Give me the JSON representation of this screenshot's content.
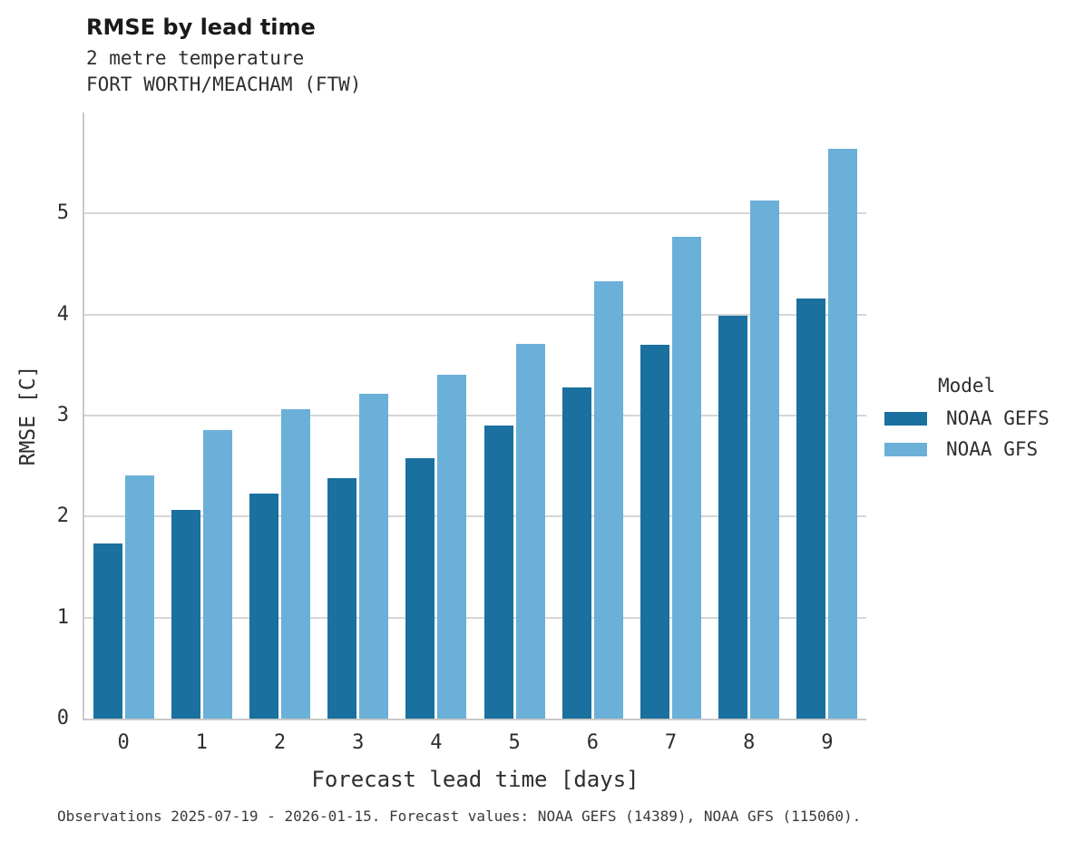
{
  "header": {
    "title": "RMSE by lead time",
    "subtitle1": "2 metre temperature",
    "subtitle2": "FORT WORTH/MEACHAM (FTW)"
  },
  "footer": {
    "caption": "Observations 2025-07-19 - 2026-01-15. Forecast values: NOAA GEFS (14389), NOAA GFS (115060)."
  },
  "legend": {
    "title": "Model"
  },
  "colors": {
    "gefs_dark_blue": "#1a709f",
    "gfs_light_blue": "#6bb0d8",
    "gridline_gray": "#d6d6d6",
    "spine_gray": "#c9c9c9"
  },
  "chart_data": {
    "type": "bar",
    "title": "RMSE by lead time",
    "subtitle": [
      "2 metre temperature",
      "FORT WORTH/MEACHAM (FTW)"
    ],
    "xlabel": "Forecast lead time [days]",
    "ylabel": "RMSE [C]",
    "categories": [
      "0",
      "1",
      "2",
      "3",
      "4",
      "5",
      "6",
      "7",
      "8",
      "9"
    ],
    "series": [
      {
        "name": "NOAA GEFS",
        "color": "#1a709f",
        "values": [
          1.73,
          2.07,
          2.23,
          2.38,
          2.58,
          2.9,
          3.28,
          3.7,
          3.99,
          4.16
        ]
      },
      {
        "name": "NOAA GFS",
        "color": "#6bb0d8",
        "values": [
          2.41,
          2.86,
          3.06,
          3.22,
          3.4,
          3.71,
          4.33,
          4.77,
          5.13,
          5.64
        ]
      }
    ],
    "ylim": [
      0,
      6
    ],
    "yticks": [
      0,
      1,
      2,
      3,
      4,
      5
    ],
    "grid": true,
    "legend_title": "Model",
    "legend_position": "right",
    "caption": "Observations 2025-07-19 - 2026-01-15. Forecast values: NOAA GEFS (14389), NOAA GFS (115060)."
  }
}
